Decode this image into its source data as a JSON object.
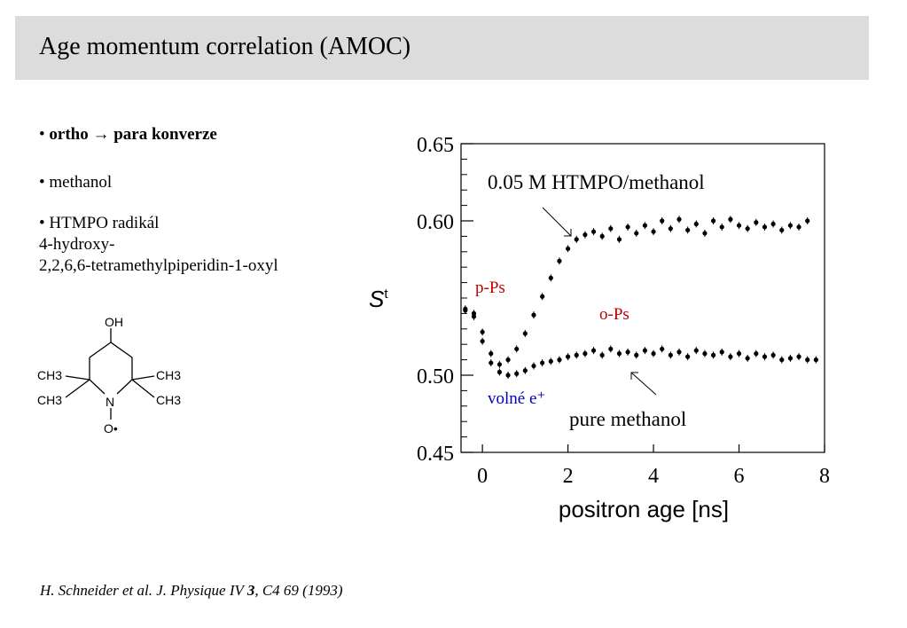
{
  "slide": {
    "title": "Age momentum correlation (AMOC)",
    "bullets": {
      "b1_prefix": "• ",
      "b1_text": "ortho → para konverze",
      "b2": "• methanol",
      "b3_line1": "• HTMPO radikál",
      "b3_line2": "4-hydroxy-",
      "b3_line3": "2,2,6,6-tetramethylpiperidin-1-oxyl"
    },
    "molecule": {
      "oh": "OH",
      "ch3_ul": "CH3",
      "ch3_ur": "CH3",
      "ch3_ll": "CH3",
      "ch3_lr": "CH3",
      "n": "N",
      "o_dot": "O•"
    },
    "citation": {
      "part1": "H. Schneider et al. J. Physique IV ",
      "vol": "3",
      "part2": ", C4 69 (1993)"
    }
  },
  "chart_data": {
    "type": "scatter",
    "xlabel": "positron age [ns]",
    "ylabel": "St",
    "xlim": [
      -0.5,
      8
    ],
    "ylim": [
      0.45,
      0.65
    ],
    "xticks": [
      "0",
      "2",
      "4",
      "6",
      "8"
    ],
    "yticks": [
      "0.45",
      "0.50",
      "0.60",
      "0.65"
    ],
    "annotations": {
      "series_htmpo": "0.05 M HTMPO/methanol",
      "series_pure": "pure methanol",
      "pps": "p-Ps",
      "ops": "o-Ps",
      "volne": "volné e⁺"
    },
    "colors": {
      "pps": "#c00000",
      "ops": "#c00000",
      "volne": "#0000c0"
    },
    "series": [
      {
        "name": "0.05 M HTMPO/methanol",
        "x": [
          -0.4,
          -0.2,
          0.0,
          0.2,
          0.4,
          0.6,
          0.8,
          1.0,
          1.2,
          1.4,
          1.6,
          1.8,
          2.0,
          2.2,
          2.4,
          2.6,
          2.8,
          3.0,
          3.2,
          3.4,
          3.6,
          3.8,
          4.0,
          4.2,
          4.4,
          4.6,
          4.8,
          5.0,
          5.2,
          5.4,
          5.6,
          5.8,
          6.0,
          6.2,
          6.4,
          6.6,
          6.8,
          7.0,
          7.2,
          7.4,
          7.6
        ],
        "values": [
          0.543,
          0.54,
          0.528,
          0.514,
          0.507,
          0.51,
          0.517,
          0.527,
          0.539,
          0.551,
          0.563,
          0.574,
          0.582,
          0.588,
          0.591,
          0.593,
          0.59,
          0.595,
          0.588,
          0.596,
          0.592,
          0.597,
          0.593,
          0.6,
          0.595,
          0.601,
          0.594,
          0.598,
          0.592,
          0.6,
          0.596,
          0.601,
          0.597,
          0.595,
          0.599,
          0.596,
          0.598,
          0.594,
          0.597,
          0.596,
          0.6
        ]
      },
      {
        "name": "pure methanol",
        "x": [
          -0.4,
          -0.2,
          0.0,
          0.2,
          0.4,
          0.6,
          0.8,
          1.0,
          1.2,
          1.4,
          1.6,
          1.8,
          2.0,
          2.2,
          2.4,
          2.6,
          2.8,
          3.0,
          3.2,
          3.4,
          3.6,
          3.8,
          4.0,
          4.2,
          4.4,
          4.6,
          4.8,
          5.0,
          5.2,
          5.4,
          5.6,
          5.8,
          6.0,
          6.2,
          6.4,
          6.6,
          6.8,
          7.0,
          7.2,
          7.4,
          7.6,
          7.8
        ],
        "values": [
          0.542,
          0.538,
          0.522,
          0.508,
          0.502,
          0.5,
          0.501,
          0.503,
          0.506,
          0.508,
          0.509,
          0.51,
          0.512,
          0.513,
          0.514,
          0.516,
          0.513,
          0.517,
          0.514,
          0.515,
          0.513,
          0.516,
          0.514,
          0.517,
          0.513,
          0.515,
          0.512,
          0.516,
          0.514,
          0.513,
          0.515,
          0.512,
          0.514,
          0.511,
          0.514,
          0.512,
          0.513,
          0.51,
          0.511,
          0.512,
          0.51,
          0.51
        ]
      }
    ]
  }
}
